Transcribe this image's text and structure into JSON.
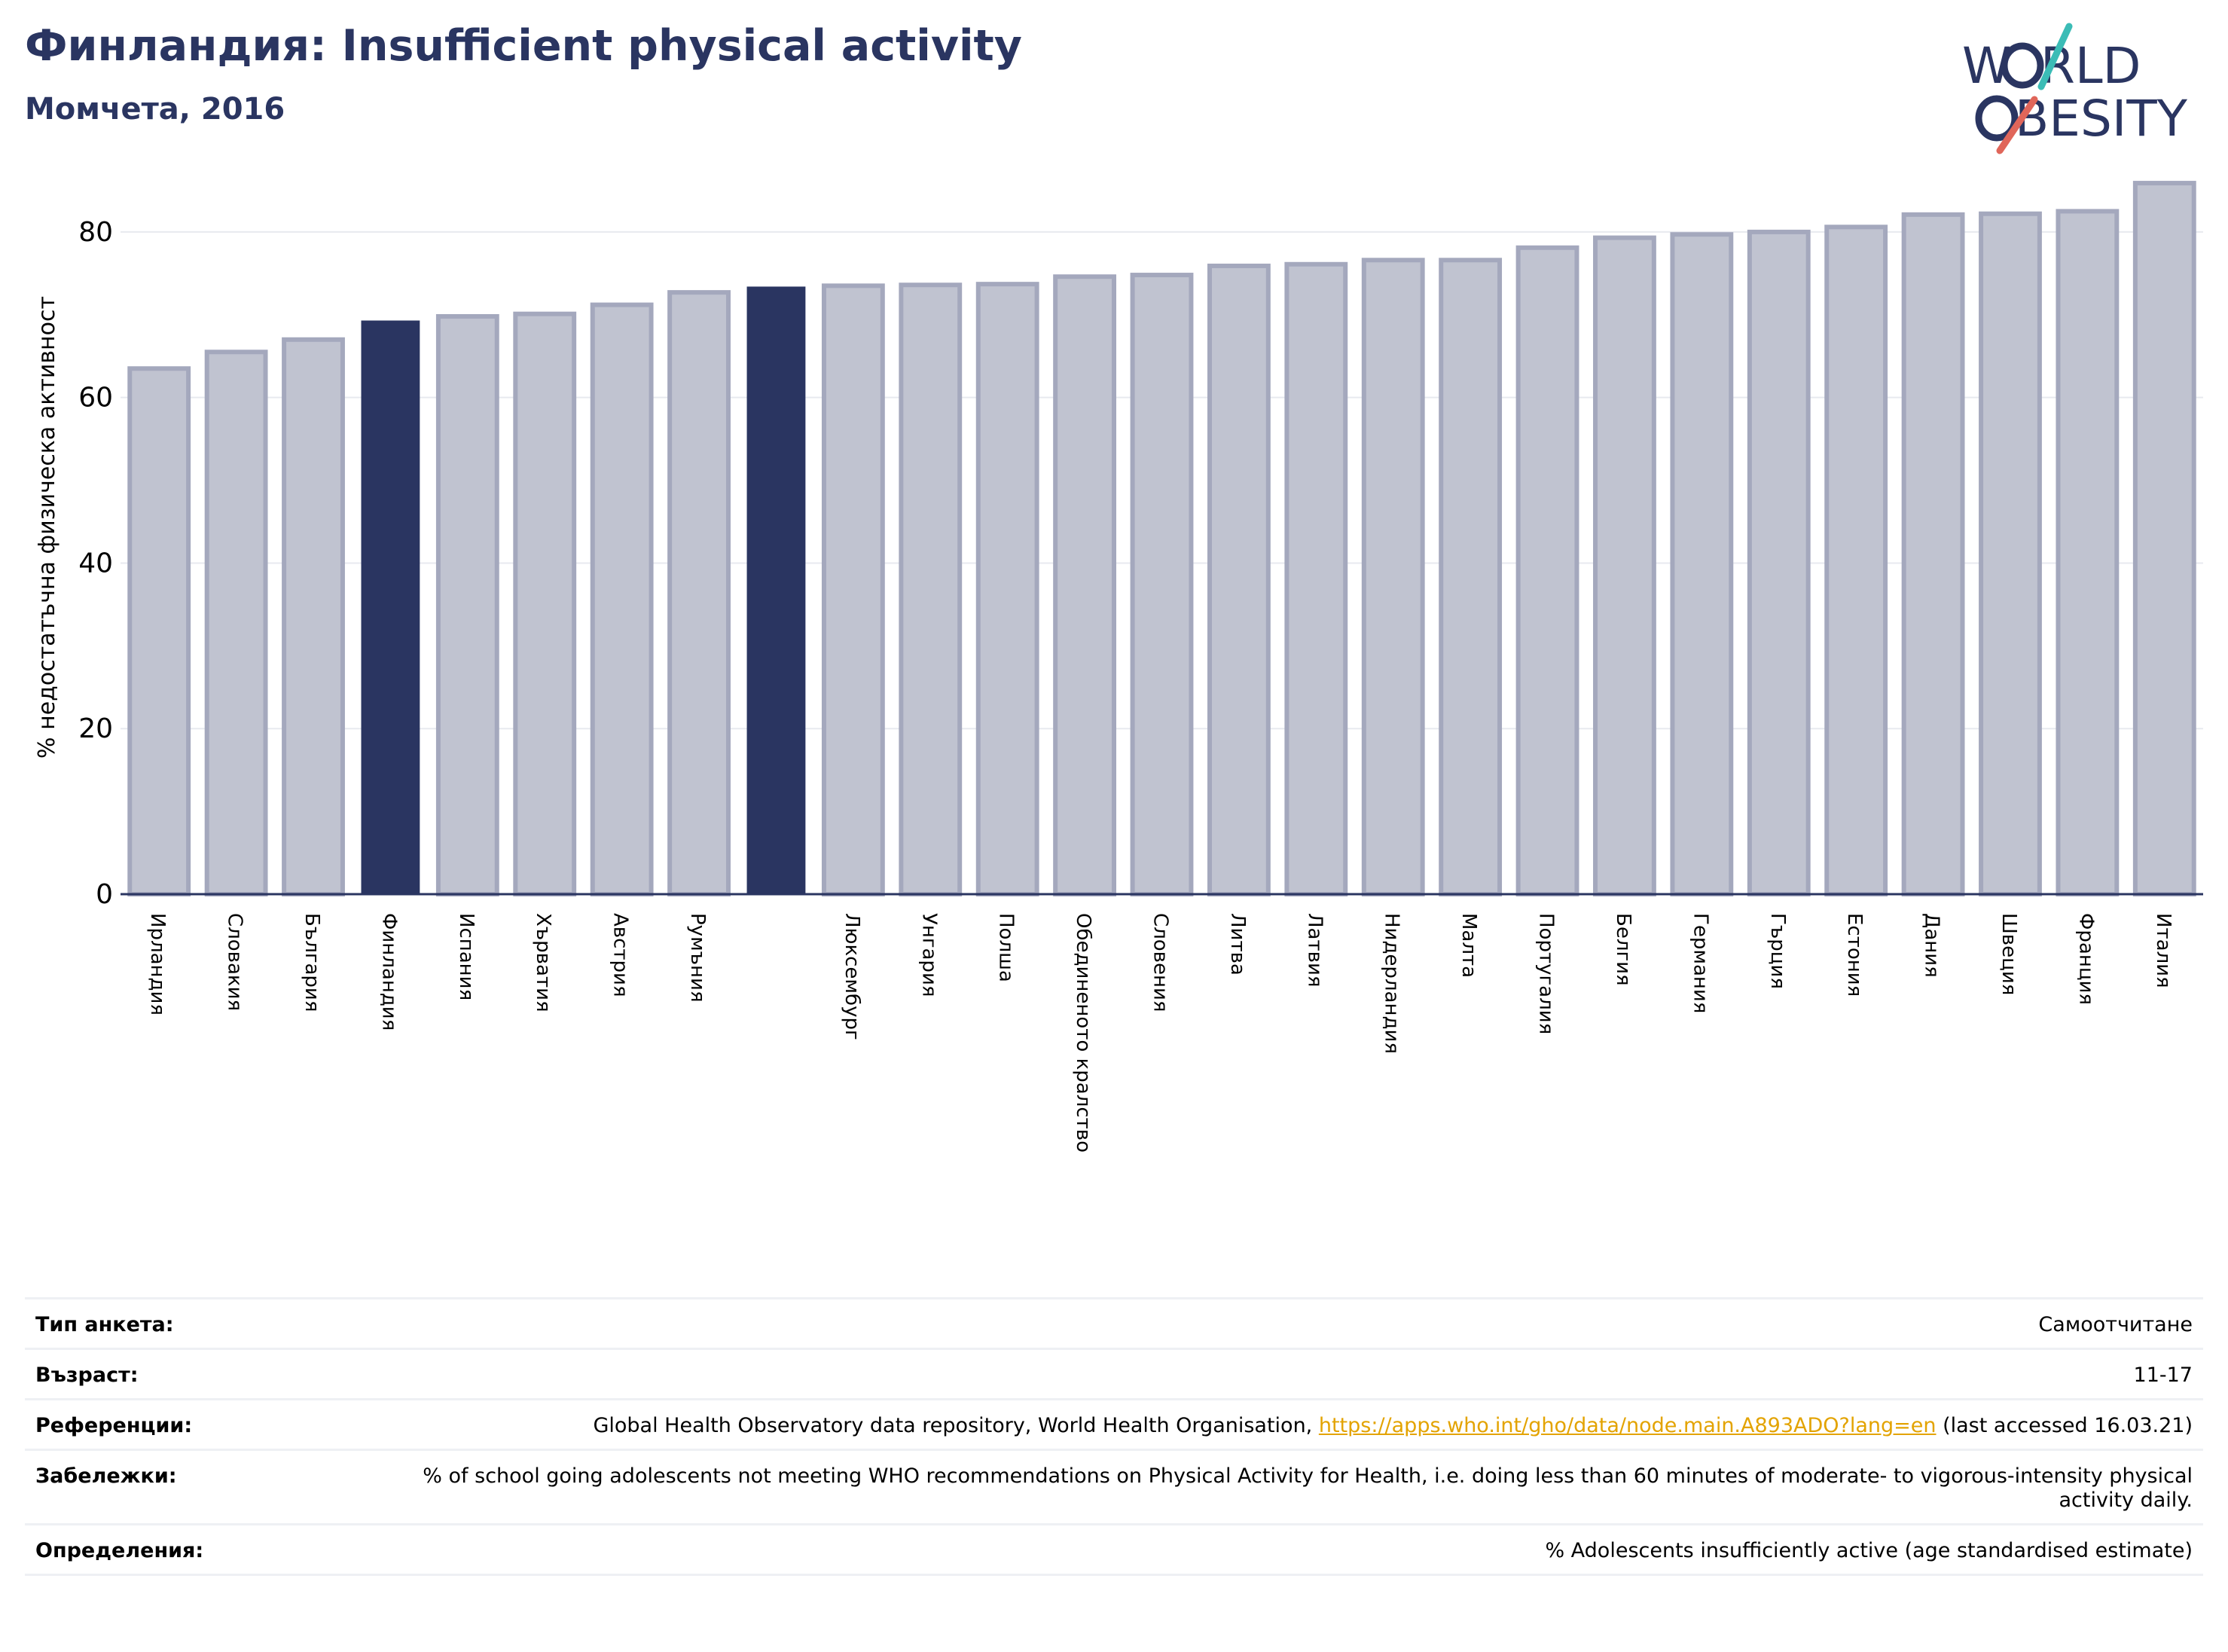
{
  "header": {
    "title": "Финландия: Insufficient physical activity",
    "subtitle": "Момчета, 2016"
  },
  "logo": {
    "line1": "W",
    "line1b": "RLD",
    "line2": "BESITY",
    "text_color": "#2a3561",
    "slash_color_top": "#3bbcb6",
    "slash_color_bottom": "#e0665a"
  },
  "chart_data": {
    "type": "bar",
    "title": "",
    "xlabel": "",
    "ylabel": "% недостатъчна физическа активност",
    "ylim": [
      0,
      88
    ],
    "yticks": [
      0,
      20,
      40,
      60,
      80
    ],
    "grid": true,
    "highlight_color": "#2a3561",
    "bar_color": "#c0c3d0",
    "bar_edge_color": "#a4a8bd",
    "categories": [
      "Ирландия",
      "Словакия",
      "България",
      "Финландия",
      "Испания",
      "Хърватия",
      "Австрия",
      "Румъния",
      "",
      "Люксембург",
      "Унгария",
      "Полша",
      "Обединеното кралство",
      "Словения",
      "Литва",
      "Латвия",
      "Нидерландия",
      "Малта",
      "Португалия",
      "Белгия",
      "Германия",
      "Гърция",
      "Естония",
      "Дания",
      "Швеция",
      "Франция",
      "Италия"
    ],
    "values": [
      63.5,
      65.5,
      67,
      69.3,
      69.8,
      70.1,
      71.2,
      72.7,
      73.4,
      73.5,
      73.6,
      73.7,
      74.6,
      74.8,
      75.9,
      76.1,
      76.6,
      76.6,
      78.1,
      79.3,
      79.7,
      80.0,
      80.6,
      82.1,
      82.2,
      82.5,
      85.9
    ],
    "highlighted": [
      3,
      8
    ]
  },
  "info_table": [
    {
      "label": "Тип анкета:",
      "value": "Самоотчитане"
    },
    {
      "label": "Възраст:",
      "value": "11-17"
    },
    {
      "label": "Референции:",
      "value_pre": "Global Health Observatory data repository, World Health Organisation, ",
      "link": "https://apps.who.int/gho/data/node.main.A893ADO?lang=en",
      "value_post": " (last accessed 16.03.21)"
    },
    {
      "label": "Забележки:",
      "value": "% of school going adolescents not meeting WHO recommendations on Physical Activity for Health, i.e. doing less than 60 minutes of moderate- to vigorous-intensity physical activity daily."
    },
    {
      "label": "Определения:",
      "value": "% Adolescents insufficiently active (age standardised estimate)"
    }
  ]
}
